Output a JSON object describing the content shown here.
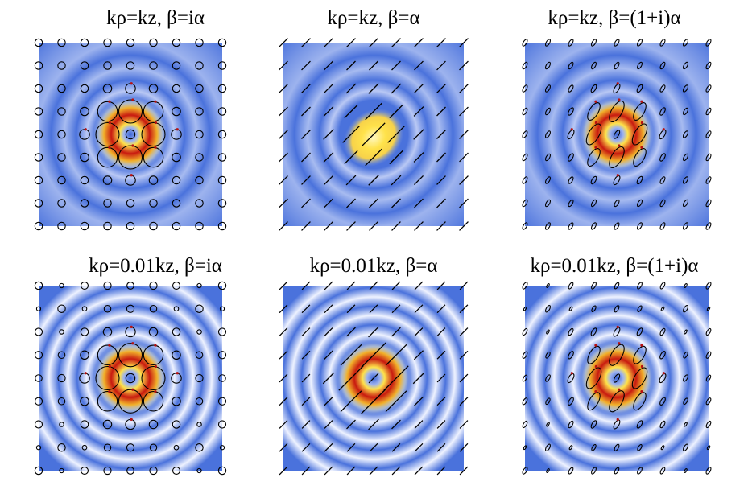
{
  "panels": [
    {
      "id": "p1",
      "title": "kρ=kz, β=iα",
      "field": "ring",
      "rings": "weak",
      "polarization": "circular"
    },
    {
      "id": "p2",
      "title": "kρ=kz, β=α",
      "field": "blob",
      "rings": "weak",
      "polarization": "linear"
    },
    {
      "id": "p3",
      "title": "kρ=kz, β=(1+i)α",
      "field": "ring",
      "rings": "weak",
      "polarization": "elliptical"
    },
    {
      "id": "p4",
      "title": "kρ=0.01kz, β=iα",
      "field": "ring",
      "rings": "strong",
      "polarization": "circular"
    },
    {
      "id": "p5",
      "title": "kρ=0.01kz, β=α",
      "field": "ring",
      "rings": "strong",
      "polarization": "linear"
    },
    {
      "id": "p6",
      "title": "kρ=0.01kz, β=(1+i)α",
      "field": "ring",
      "rings": "strong",
      "polarization": "elliptical"
    }
  ],
  "colors": {
    "background": "#4a72dc",
    "light": "#eef2ff",
    "hot_low": "#ffe24a",
    "hot_high": "#c81a10",
    "marker": "#000000",
    "arrow": "#b81010"
  }
}
